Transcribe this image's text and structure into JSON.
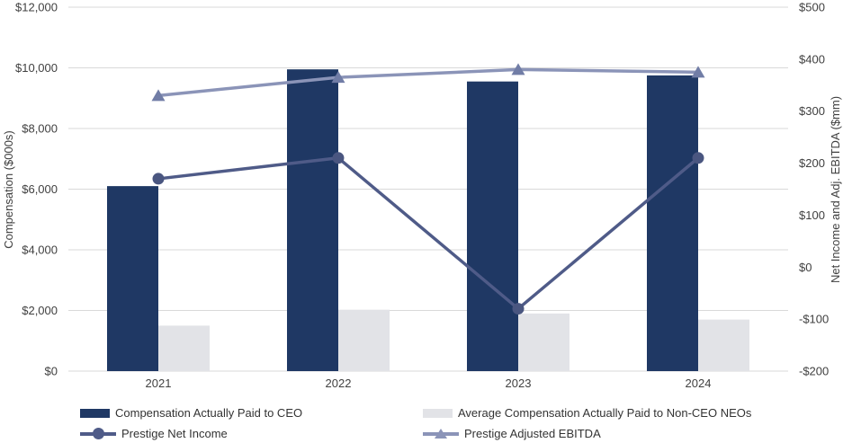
{
  "chart_data": {
    "type": "combo-bar-line-dual-axis",
    "title": "",
    "categories": [
      "2021",
      "2022",
      "2023",
      "2024"
    ],
    "bar_series": [
      {
        "name": "Compensation Actually Paid to CEO",
        "axis": "left",
        "color": "#1F3864",
        "values": [
          6100,
          9950,
          9550,
          9750
        ]
      },
      {
        "name": "Average Compensation Actually Paid to Non-CEO NEOs",
        "axis": "left",
        "color": "#E2E3E7",
        "values": [
          1500,
          2025,
          1900,
          1700
        ]
      }
    ],
    "line_series": [
      {
        "name": "Prestige Net Income",
        "axis": "right",
        "color": "#4F5B88",
        "marker": "circle",
        "marker_color": "#4A5680",
        "values": [
          170,
          210,
          -80,
          210
        ]
      },
      {
        "name": "Prestige Adjusted EBITDA",
        "axis": "right",
        "color": "#8B94B8",
        "marker": "triangle-up",
        "marker_color": "#717DA6",
        "values": [
          330,
          365,
          380,
          375
        ]
      }
    ],
    "left_axis": {
      "title": "Compensation ($000s)",
      "min": 0,
      "max": 12000,
      "step": 2000,
      "tick_labels": [
        "$0",
        "$2,000",
        "$4,000",
        "$6,000",
        "$8,000",
        "$10,000",
        "$12,000"
      ]
    },
    "right_axis": {
      "title": "Net Income and Adj. EBITDA ($mm)",
      "min": -200,
      "max": 500,
      "step": 100,
      "tick_labels": [
        "-$200",
        "-$100",
        "$0",
        "$100",
        "$200",
        "$300",
        "$400",
        "$500"
      ]
    },
    "grid": {
      "on": true,
      "color": "#D9D9D9"
    },
    "legend": {
      "position": "bottom",
      "columns": 2
    }
  }
}
